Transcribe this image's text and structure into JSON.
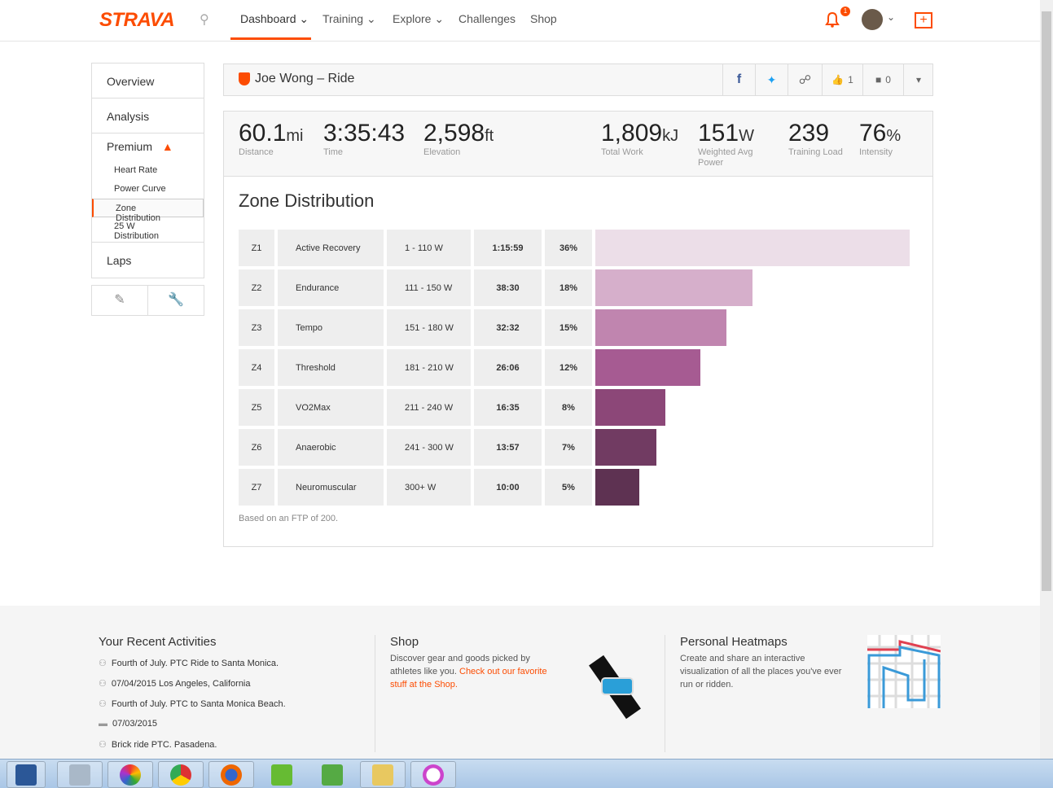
{
  "nav": {
    "logo": "STRAVA",
    "items": [
      "Dashboard",
      "Training",
      "Explore",
      "Challenges",
      "Shop"
    ],
    "active": "Dashboard",
    "notification_count": "1",
    "accent": "#fc4c02"
  },
  "sidebar": {
    "items": [
      "Overview",
      "Analysis",
      "Premium"
    ],
    "sub_items": [
      "Heart Rate",
      "Power Curve",
      "Zone Distribution",
      "25 W Distribution"
    ],
    "selected": "Zone Distribution",
    "laps": "Laps"
  },
  "activity": {
    "title": "Joe Wong – Ride",
    "kudos": "1",
    "comments": "0"
  },
  "stats": [
    {
      "value": "60.1",
      "unit": "mi",
      "label": "Distance"
    },
    {
      "value": "3:35:43",
      "unit": "",
      "label": "Time"
    },
    {
      "value": "2,598",
      "unit": "ft",
      "label": "Elevation"
    },
    {
      "value": "1,809",
      "unit": "kJ",
      "label": "Total Work"
    },
    {
      "value": "151",
      "unit": "W",
      "label": "Weighted Avg Power"
    },
    {
      "value": "239",
      "unit": "",
      "label": "Training Load"
    },
    {
      "value": "76",
      "unit": "%",
      "label": "Intensity"
    }
  ],
  "zones": {
    "title": "Zone Distribution",
    "note": "Based on an FTP of 200.",
    "rows": [
      {
        "zone": "Z1",
        "name": "Active Recovery",
        "range": "1 - 110 W",
        "time": "1:15:59",
        "pct": "36%",
        "value": 36,
        "color": "#ecdee8"
      },
      {
        "zone": "Z2",
        "name": "Endurance",
        "range": "111 - 150 W",
        "time": "38:30",
        "pct": "18%",
        "value": 18,
        "color": "#d6afcb"
      },
      {
        "zone": "Z3",
        "name": "Tempo",
        "range": "151 - 180 W",
        "time": "32:32",
        "pct": "15%",
        "value": 15,
        "color": "#c085af"
      },
      {
        "zone": "Z4",
        "name": "Threshold",
        "range": "181 - 210 W",
        "time": "26:06",
        "pct": "12%",
        "value": 12,
        "color": "#a65b92"
      },
      {
        "zone": "Z5",
        "name": "VO2Max",
        "range": "211 - 240 W",
        "time": "16:35",
        "pct": "8%",
        "value": 8,
        "color": "#8c4778"
      },
      {
        "zone": "Z6",
        "name": "Anaerobic",
        "range": "241 - 300 W",
        "time": "13:57",
        "pct": "7%",
        "value": 7,
        "color": "#713b62"
      },
      {
        "zone": "Z7",
        "name": "Neuromuscular",
        "range": "300+ W",
        "time": "10:00",
        "pct": "5%",
        "value": 5,
        "color": "#5e3252"
      }
    ]
  },
  "footer": {
    "recent_title": "Your Recent Activities",
    "recent": [
      "Fourth of July. PTC Ride to Santa Monica.",
      "07/04/2015 Los Angeles, California",
      "Fourth of July. PTC to Santa Monica Beach.",
      "07/03/2015",
      "Brick ride PTC. Pasadena."
    ],
    "shop_title": "Shop",
    "shop_text": "Discover gear and goods picked by athletes like you.",
    "shop_link": "Check out our favorite stuff at the Shop.",
    "heat_title": "Personal Heatmaps",
    "heat_text": "Create and share an interactive visualization of all the places you've ever run or ridden."
  }
}
